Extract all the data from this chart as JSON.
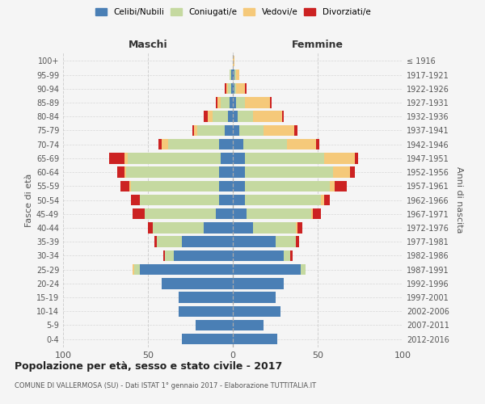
{
  "age_groups": [
    "0-4",
    "5-9",
    "10-14",
    "15-19",
    "20-24",
    "25-29",
    "30-34",
    "35-39",
    "40-44",
    "45-49",
    "50-54",
    "55-59",
    "60-64",
    "65-69",
    "70-74",
    "75-79",
    "80-84",
    "85-89",
    "90-94",
    "95-99",
    "100+"
  ],
  "birth_years": [
    "2012-2016",
    "2007-2011",
    "2002-2006",
    "1997-2001",
    "1992-1996",
    "1987-1991",
    "1982-1986",
    "1977-1981",
    "1972-1976",
    "1967-1971",
    "1962-1966",
    "1957-1961",
    "1952-1956",
    "1947-1951",
    "1942-1946",
    "1937-1941",
    "1932-1936",
    "1927-1931",
    "1922-1926",
    "1917-1921",
    "≤ 1916"
  ],
  "maschi": {
    "celibi": [
      30,
      22,
      32,
      32,
      42,
      55,
      35,
      30,
      17,
      10,
      8,
      8,
      8,
      7,
      8,
      5,
      3,
      2,
      1,
      1,
      0
    ],
    "coniugati": [
      0,
      0,
      0,
      0,
      0,
      3,
      5,
      15,
      30,
      42,
      47,
      52,
      55,
      55,
      30,
      16,
      9,
      5,
      2,
      1,
      0
    ],
    "vedovi": [
      0,
      0,
      0,
      0,
      0,
      1,
      0,
      0,
      0,
      0,
      0,
      1,
      1,
      2,
      4,
      2,
      3,
      2,
      1,
      0,
      0
    ],
    "divorziati": [
      0,
      0,
      0,
      0,
      0,
      0,
      1,
      1,
      3,
      7,
      5,
      5,
      4,
      9,
      2,
      1,
      2,
      1,
      1,
      0,
      0
    ]
  },
  "femmine": {
    "nubili": [
      26,
      18,
      28,
      25,
      30,
      40,
      30,
      25,
      12,
      8,
      7,
      7,
      7,
      7,
      6,
      4,
      3,
      2,
      1,
      1,
      0
    ],
    "coniugate": [
      0,
      0,
      0,
      0,
      0,
      3,
      4,
      12,
      25,
      38,
      45,
      50,
      52,
      47,
      26,
      14,
      9,
      5,
      1,
      1,
      0
    ],
    "vedove": [
      0,
      0,
      0,
      0,
      0,
      0,
      0,
      0,
      1,
      1,
      2,
      3,
      10,
      18,
      17,
      18,
      17,
      15,
      5,
      2,
      1
    ],
    "divorziate": [
      0,
      0,
      0,
      0,
      0,
      0,
      1,
      2,
      3,
      5,
      3,
      7,
      3,
      2,
      2,
      2,
      1,
      1,
      1,
      0,
      0
    ]
  },
  "colors": {
    "celibi": "#4a7fb5",
    "coniugati": "#c5d9a0",
    "vedovi": "#f5c97a",
    "divorziati": "#cc2222"
  },
  "title": "Popolazione per età, sesso e stato civile - 2017",
  "subtitle": "COMUNE DI VALLERMOSA (SU) - Dati ISTAT 1° gennaio 2017 - Elaborazione TUTTITALIA.IT",
  "xlabel_left": "Maschi",
  "xlabel_right": "Femmine",
  "ylabel_left": "Fasce di età",
  "ylabel_right": "Anni di nascita",
  "xlim": 100,
  "bg_color": "#f5f5f5",
  "grid_color": "#cccccc"
}
